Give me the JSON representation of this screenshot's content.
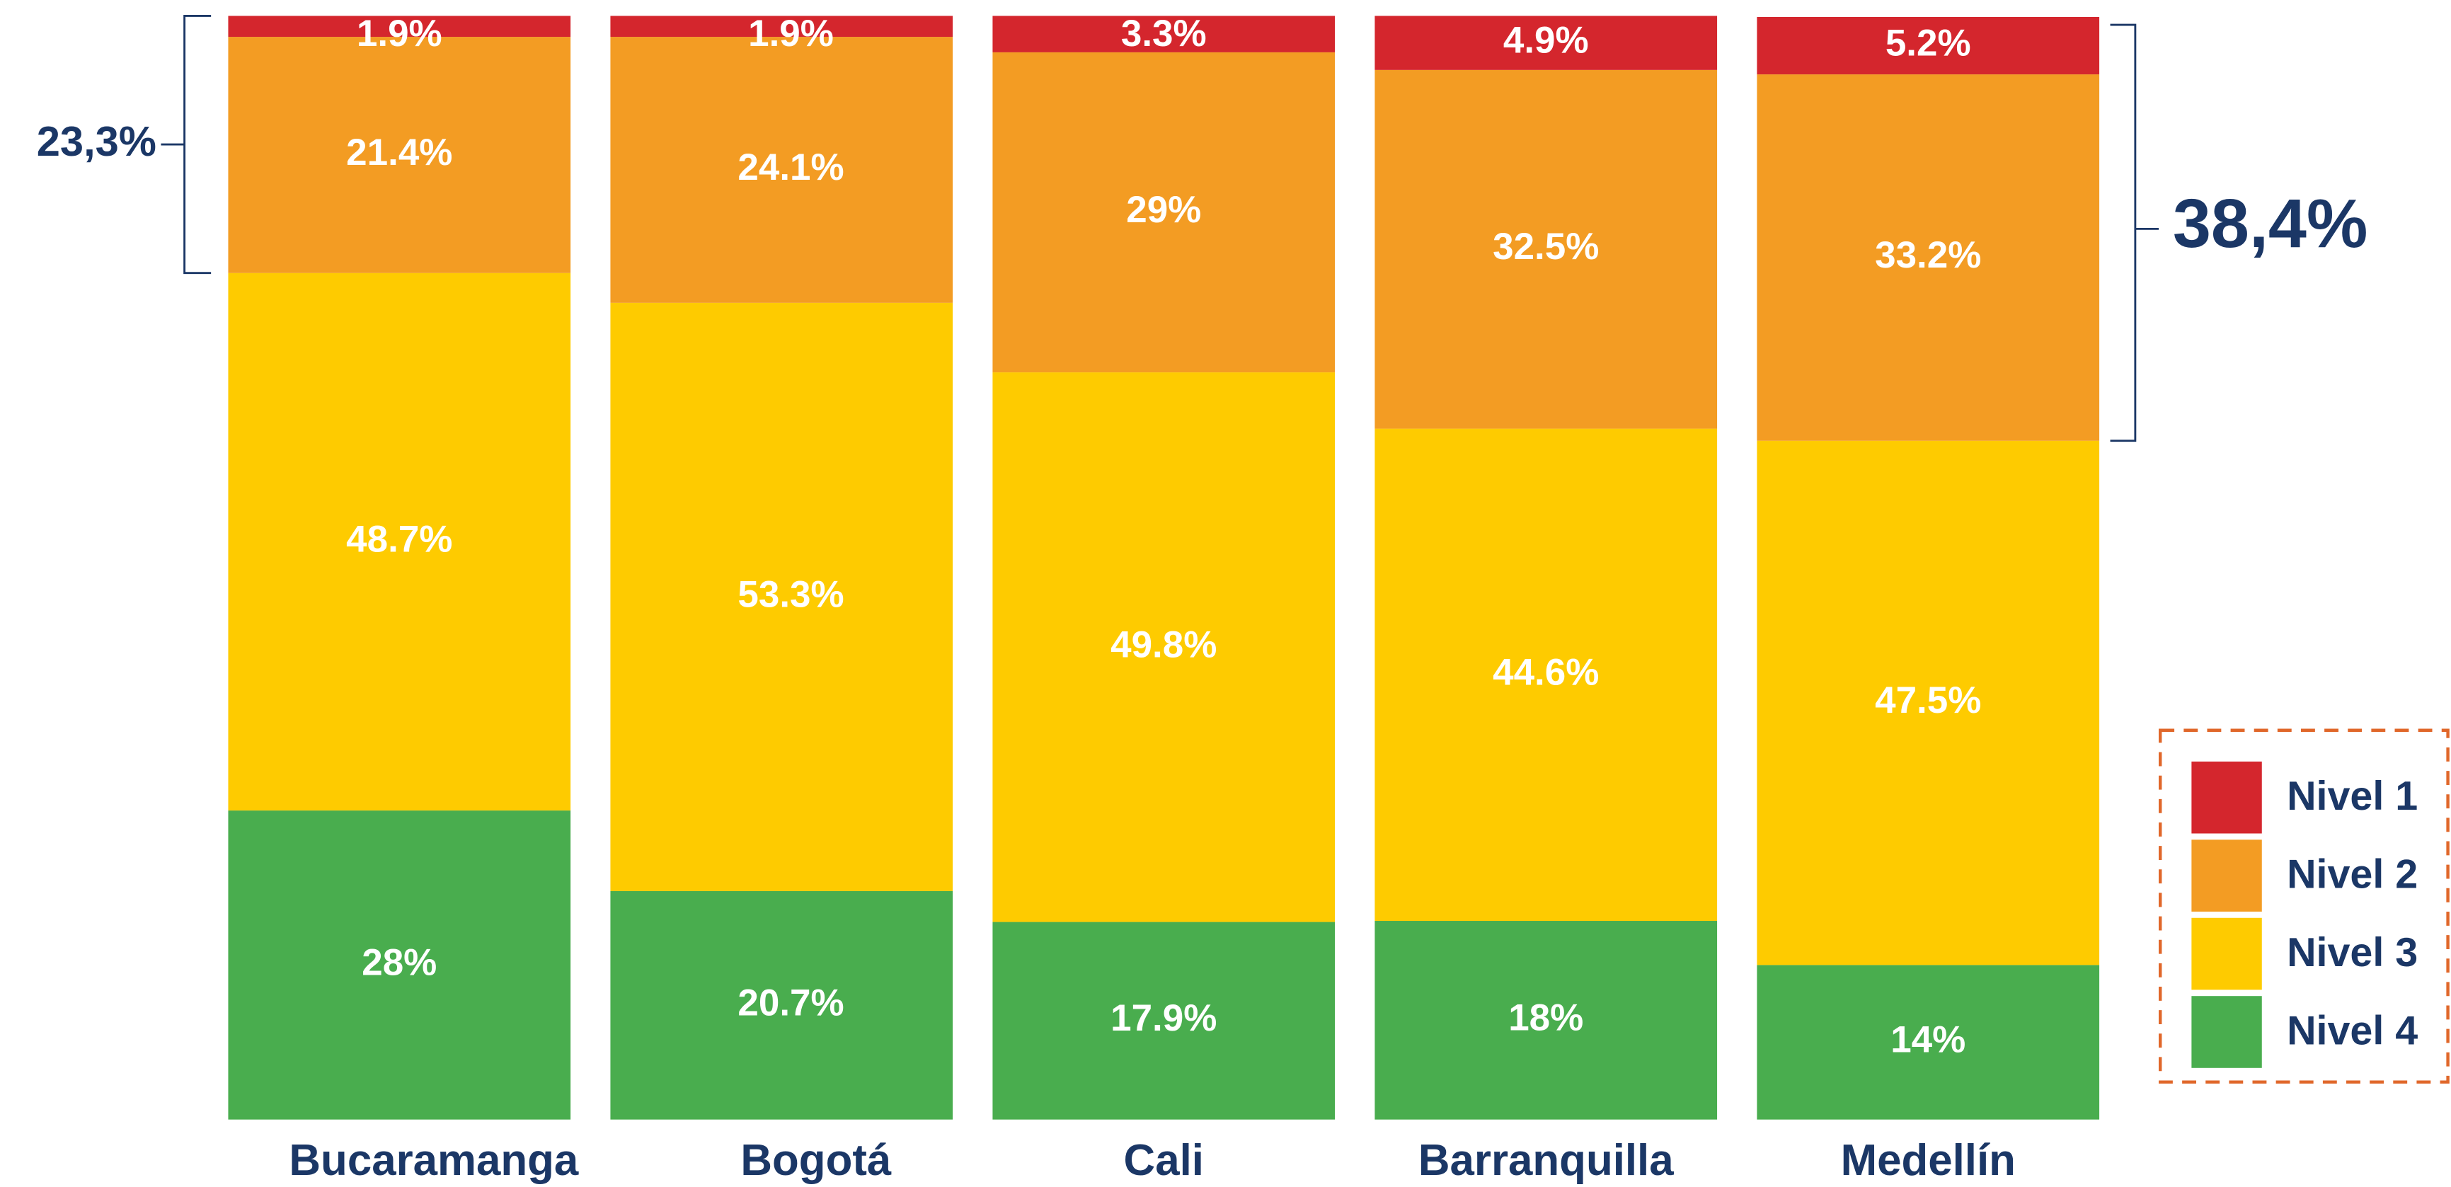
{
  "chart_data": {
    "type": "stacked_bar",
    "categories": [
      "Bucaramanga",
      "Bogotá",
      "Cali",
      "Barranquilla",
      "Medellín"
    ],
    "series": [
      {
        "name": "Nivel 1",
        "color": "#d4262d",
        "values": [
          1.9,
          1.9,
          3.3,
          4.9,
          5.2
        ],
        "value_labels": [
          "1.9%",
          "1.9%",
          "3.3%",
          "4.9%",
          "5.2%"
        ]
      },
      {
        "name": "Nivel 2",
        "color": "#f39c23",
        "values": [
          21.4,
          24.1,
          29,
          32.5,
          33.2
        ],
        "value_labels": [
          "21.4%",
          "24.1%",
          "29%",
          "32.5%",
          "33.2%"
        ]
      },
      {
        "name": "Nivel 3",
        "color": "#fecb00",
        "values": [
          48.7,
          53.3,
          49.8,
          44.6,
          47.5
        ],
        "value_labels": [
          "48.7%",
          "53.3%",
          "49.8%",
          "44.6%",
          "47.5%"
        ]
      },
      {
        "name": "Nivel 4",
        "color": "#49ad4e",
        "values": [
          28,
          20.7,
          17.9,
          18,
          14
        ],
        "value_labels": [
          "28%",
          "20.7%",
          "17.9%",
          "18%",
          "14%"
        ]
      }
    ],
    "ylim": [
      0,
      100
    ],
    "annotations": [
      "23,3%",
      "38,4%"
    ],
    "legend": "right"
  }
}
